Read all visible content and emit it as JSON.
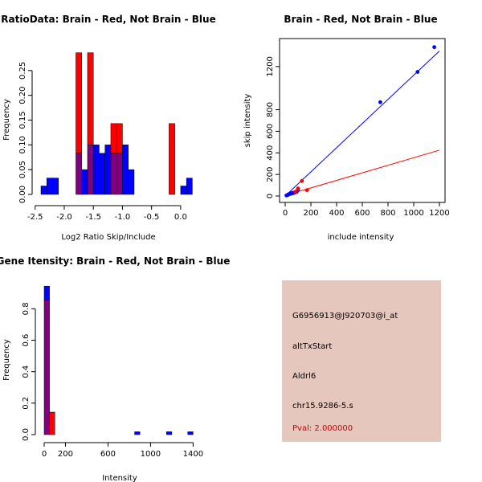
{
  "chart_data": [
    {
      "id": "ratio",
      "type": "bar",
      "title": "RatioData: Brain - Red, Not Brain - Blue",
      "xlabel": "Log2 Ratio Skip/Include",
      "ylabel": "Frequency",
      "xlim": [
        -2.4,
        0.25
      ],
      "ylim": [
        0,
        0.3
      ],
      "xticks": [
        -2.5,
        -2.0,
        -1.5,
        -1.0,
        -0.5,
        0.0
      ],
      "xtick_labels": [
        "-2.5",
        "-2.0",
        "-1.5",
        "-1.0",
        "-0.5",
        "0.0"
      ],
      "yticks": [
        0,
        0.05,
        0.1,
        0.15,
        0.2,
        0.25
      ],
      "ytick_labels": [
        "0.00",
        "0.05",
        "0.10",
        "0.15",
        "0.20",
        "0.25"
      ],
      "bin_width": 0.1,
      "series": [
        {
          "name": "Not Brain",
          "color": "#0000ff",
          "bins": [
            -2.4,
            -2.3,
            -2.2,
            -2.1,
            -2.0,
            -1.9,
            -1.8,
            -1.7,
            -1.6,
            -1.5,
            -1.4,
            -1.3,
            -1.2,
            -1.1,
            -1.0,
            -0.9,
            -0.8,
            -0.7,
            -0.6,
            -0.5,
            -0.4,
            -0.3,
            -0.2,
            -0.1,
            0.0,
            0.1
          ],
          "values": [
            0.017,
            0.033,
            0.033,
            0,
            0,
            0,
            0.083,
            0.05,
            0.1,
            0.1,
            0.083,
            0.1,
            0.083,
            0.083,
            0.1,
            0.05,
            0,
            0,
            0,
            0,
            0,
            0,
            0,
            0,
            0.017,
            0.033
          ]
        },
        {
          "name": "Brain",
          "color": "#ff0000",
          "bins": [
            -2.4,
            -2.3,
            -2.2,
            -2.1,
            -2.0,
            -1.9,
            -1.8,
            -1.7,
            -1.6,
            -1.5,
            -1.4,
            -1.3,
            -1.2,
            -1.1,
            -1.0,
            -0.9,
            -0.8,
            -0.7,
            -0.6,
            -0.5,
            -0.4,
            -0.3,
            -0.2,
            -0.1,
            0.0,
            0.1
          ],
          "values": [
            0,
            0,
            0,
            0,
            0,
            0,
            0.286,
            0,
            0.286,
            0,
            0,
            0,
            0.143,
            0.143,
            0,
            0,
            0,
            0,
            0,
            0,
            0,
            0,
            0.143,
            0,
            0,
            0
          ]
        }
      ]
    },
    {
      "id": "scatter",
      "type": "scatter",
      "title": "Brain - Red, Not Brain - Blue",
      "xlabel": "include intensity",
      "ylabel": "skip intensity",
      "xlim": [
        0,
        1200
      ],
      "ylim": [
        0,
        1400
      ],
      "xticks": [
        0,
        200,
        400,
        600,
        800,
        1000,
        1200
      ],
      "xtick_labels": [
        "0",
        "200",
        "400",
        "600",
        "800",
        "1000",
        "1200"
      ],
      "yticks": [
        0,
        200,
        400,
        600,
        800,
        1200
      ],
      "ytick_labels": [
        "0",
        "200",
        "400",
        "600",
        "800",
        "1200"
      ],
      "series": [
        {
          "name": "Not Brain",
          "color": "#0000ff",
          "x": [
            10,
            20,
            25,
            30,
            35,
            40,
            45,
            50,
            55,
            60,
            65,
            70,
            80,
            90,
            100,
            740,
            1030,
            1160
          ],
          "y": [
            5,
            10,
            15,
            15,
            20,
            20,
            25,
            25,
            25,
            30,
            30,
            30,
            35,
            40,
            60,
            870,
            1150,
            1380
          ],
          "fit": {
            "slope": 1.12,
            "intercept": 0
          }
        },
        {
          "name": "Brain",
          "color": "#ff0000",
          "x": [
            80,
            100,
            130,
            170
          ],
          "y": [
            40,
            70,
            140,
            55
          ],
          "fit": {
            "slope": 0.35,
            "intercept": 5
          }
        }
      ]
    },
    {
      "id": "intensity",
      "type": "bar",
      "title": "Gene Itensity: Brain - Red, Not Brain - Blue",
      "xlabel": "Intensity",
      "ylabel": "Frequency",
      "xlim": [
        0,
        1450
      ],
      "ylim": [
        0,
        0.95
      ],
      "xticks": [
        0,
        200,
        600,
        1000,
        1400
      ],
      "xtick_labels": [
        "0",
        "200",
        "600",
        "1000",
        "1400"
      ],
      "yticks": [
        0,
        0.2,
        0.4,
        0.6,
        0.8
      ],
      "ytick_labels": [
        "0.0",
        "0.2",
        "0.4",
        "0.6",
        "0.8"
      ],
      "bin_width": 50,
      "series": [
        {
          "name": "Not Brain",
          "color": "#0000ff",
          "bins": [
            25,
            75,
            875,
            1175,
            1375
          ],
          "values": [
            0.944,
            0,
            0.018,
            0.018,
            0.018
          ]
        },
        {
          "name": "Brain",
          "color": "#ff0000",
          "bins": [
            25,
            75,
            875,
            1175,
            1375
          ],
          "values": [
            0.857,
            0.143,
            0,
            0,
            0
          ]
        }
      ]
    }
  ],
  "info": {
    "probe": "G6956913@J920703@i_at",
    "event": "altTxStart",
    "gene": "Aldrl6",
    "location": "chr15.9286-5.s",
    "pval": "Pval: 2.000000",
    "bg_color": "#e6c7be",
    "pval_color": "#cc0000"
  },
  "overlap_color": "#800080"
}
